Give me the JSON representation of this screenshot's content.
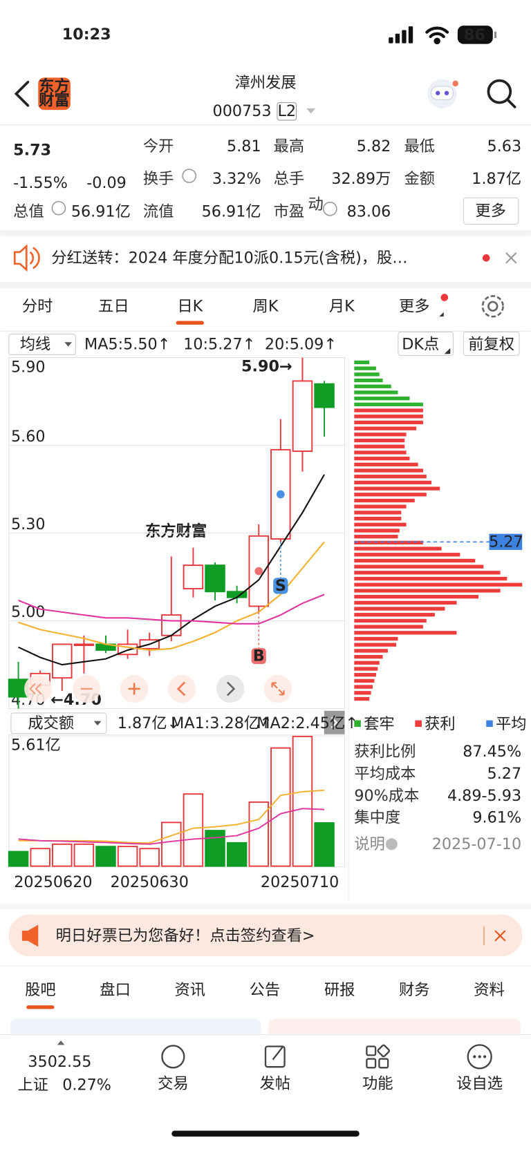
{
  "status_bar": {
    "time": "10:23",
    "battery": "86"
  },
  "header": {
    "logo": [
      "东方",
      "财富"
    ],
    "title": "漳州发展",
    "code": "000753",
    "badge": "L2"
  },
  "quote": {
    "price": "5.73",
    "change_pct": "-1.55%",
    "change": "-0.09",
    "color": "#0f9d25",
    "stats": [
      {
        "label": "今开",
        "value": "5.81",
        "color": "#0f9d25"
      },
      {
        "label": "最高",
        "value": "5.82"
      },
      {
        "label": "最低",
        "value": "5.63",
        "color": "#0f9d25"
      },
      {
        "label": "换手",
        "value": "3.32%"
      },
      {
        "label": "总手",
        "value": "32.89万"
      },
      {
        "label": "金额",
        "value": "1.87亿"
      },
      {
        "label": "总值",
        "value": "56.91亿"
      },
      {
        "label": "流值",
        "value": "56.91亿"
      },
      {
        "label": "市盈",
        "sup": "动",
        "value": "83.06"
      }
    ],
    "more": "更多"
  },
  "notice": {
    "text": "分红送转：2024 年度分配10派0.15元(含税)，股…"
  },
  "period_tabs": {
    "items": [
      "分时",
      "五日",
      "日K",
      "周K",
      "月K",
      "更多"
    ],
    "active": 2
  },
  "indicator_bar": {
    "ma_selector": "均线",
    "dk": "DK点",
    "adjust": "前复权"
  },
  "volume_bar": {
    "selector": "成交额"
  },
  "chart_data": [
    {
      "type": "candlestick",
      "watermark": "东方财富",
      "open": [
        4.8,
        4.78,
        4.805,
        4.92,
        4.92,
        4.885,
        4.905,
        4.95,
        5.11,
        5.19,
        5.1,
        5.05,
        5.28,
        5.58,
        5.81
      ],
      "high": [
        4.86,
        4.83,
        4.92,
        4.95,
        4.95,
        4.97,
        4.96,
        5.22,
        5.25,
        5.2,
        5.12,
        5.33,
        5.69,
        5.9,
        5.82
      ],
      "low": [
        4.7,
        4.77,
        4.76,
        4.82,
        4.89,
        4.87,
        4.88,
        4.93,
        5.08,
        5.07,
        5.06,
        5.03,
        5.27,
        5.51,
        5.63
      ],
      "close": [
        4.74,
        4.82,
        4.92,
        4.92,
        4.9,
        4.92,
        4.935,
        5.02,
        5.19,
        5.1,
        5.08,
        5.29,
        5.585,
        5.82,
        5.73
      ],
      "up_color": "#e8383d",
      "down_color": "#0f9d25",
      "ylim": [
        4.7,
        5.9
      ],
      "yticks": [
        {
          "value": 4.7,
          "label": "4.70"
        },
        {
          "value": 5,
          "label": "5.00"
        },
        {
          "value": 5.3,
          "label": "5.30"
        },
        {
          "value": 5.6,
          "label": "5.60"
        },
        {
          "value": 5.9,
          "label": "5.90"
        }
      ],
      "grid": true,
      "max_label": "5.90→",
      "min_label": "←4.70",
      "signals": [
        {
          "label": "B",
          "index": 11,
          "color": "#f07070"
        },
        {
          "label": "S",
          "index": 12,
          "color": "#4a90e2"
        }
      ],
      "series": [
        {
          "name": "MA5:5.50↑",
          "color": "#111111",
          "values": [
            4.91,
            4.875,
            4.85,
            4.86,
            4.87,
            4.9,
            4.92,
            4.95,
            5.005,
            5.05,
            5.08,
            5.14,
            5.255,
            5.37,
            5.5
          ]
        },
        {
          "name": "10:5.27↑",
          "color": "#f5b02e",
          "values": [
            4.995,
            4.97,
            4.955,
            4.94,
            4.92,
            4.91,
            4.9,
            4.905,
            4.93,
            4.96,
            5.0,
            5.03,
            5.09,
            5.18,
            5.27
          ]
        },
        {
          "name": "20:5.09↑",
          "color": "#e0359e",
          "values": [
            5.07,
            5.04,
            5.03,
            5.02,
            5.01,
            5.01,
            5.005,
            5.0,
            5.0,
            4.995,
            4.99,
            4.99,
            5.02,
            5.06,
            5.09
          ]
        }
      ]
    },
    {
      "type": "bar",
      "current_label": "1.87亿↓",
      "categories": [
        "20250620",
        null,
        null,
        null,
        null,
        null,
        "20250630",
        null,
        null,
        null,
        null,
        null,
        null,
        null,
        "20250710"
      ],
      "values": [
        0.63,
        0.76,
        0.95,
        0.95,
        0.85,
        0.85,
        0.76,
        1.89,
        3.12,
        1.54,
        1.01,
        2.77,
        5.11,
        5.61,
        1.87
      ],
      "ylim": [
        0,
        5.61
      ],
      "yticks": [
        {
          "value": 5.61,
          "label": "5.61亿"
        }
      ],
      "series": [
        {
          "name": "MA1:3.28亿↑",
          "color": "#f5b02e",
          "values": [
            1.1,
            1.1,
            1.1,
            1.1,
            1.08,
            1.02,
            1.0,
            1.32,
            1.64,
            1.7,
            1.8,
            2.02,
            3.06,
            3.22,
            3.28
          ]
        },
        {
          "name": "MA2:2.45亿↑",
          "color": "#e0359e",
          "values": [
            1.17,
            1.1,
            1.08,
            1.05,
            1.02,
            0.98,
            0.95,
            1.07,
            1.17,
            1.23,
            1.32,
            1.64,
            2.27,
            2.49,
            2.45
          ]
        }
      ]
    },
    {
      "type": "chip",
      "series": [
        {
          "name": "套牢",
          "color": "#2fb12f",
          "values": [
            9,
            13,
            15,
            17,
            22,
            26,
            33,
            41
          ]
        },
        {
          "name": "获利",
          "color": "#ee3b3b",
          "values": [
            41,
            41,
            41,
            37,
            31,
            30,
            30,
            31,
            33,
            38,
            41,
            43,
            46,
            51,
            43,
            36,
            31,
            28,
            28,
            31,
            27,
            26,
            41,
            52,
            63,
            72,
            77,
            87,
            91,
            100,
            87,
            74,
            61,
            54,
            48,
            43,
            41,
            61,
            26,
            25,
            20,
            17,
            15,
            14,
            13,
            12,
            11,
            10,
            9
          ]
        }
      ],
      "average": {
        "name": "平均",
        "color": "#3d82e0",
        "value": 5.27
      }
    }
  ],
  "chip_stats": {
    "rows": [
      [
        "获利比例",
        "87.45%"
      ],
      [
        "平均成本",
        "5.27"
      ],
      [
        "90%成本",
        "4.89-5.93"
      ],
      [
        "集中度",
        "9.61%"
      ]
    ],
    "note": "说明",
    "date": "2025-07-10"
  },
  "promo": {
    "text": "明日好票已为您备好！点击签约查看>"
  },
  "section_tabs": {
    "items": [
      "股吧",
      "盘口",
      "资讯",
      "公告",
      "研报",
      "财务",
      "资料"
    ],
    "active": 0
  },
  "bottom_nav": {
    "index_value": "3502.55",
    "index_name": "上证",
    "index_change": "0.27%",
    "items": [
      "交易",
      "发帖",
      "功能",
      "设自选"
    ]
  }
}
